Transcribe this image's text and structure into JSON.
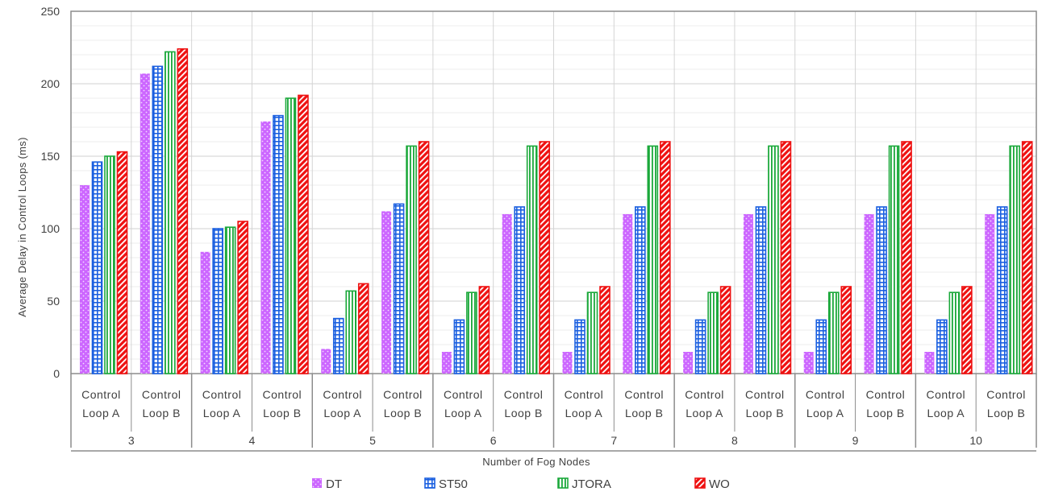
{
  "chart_data": {
    "type": "bar",
    "title": "",
    "xlabel": "Number of Fog Nodes",
    "ylabel": "Average Delay in Control Loops (ms)",
    "ylim": [
      0,
      250
    ],
    "yticks": [
      0,
      50,
      100,
      150,
      200,
      250
    ],
    "groups": [
      "3",
      "4",
      "5",
      "6",
      "7",
      "8",
      "9",
      "10"
    ],
    "subcategory_lines": [
      [
        "Control",
        "Loop A"
      ],
      [
        "Control",
        "Loop B"
      ]
    ],
    "series": [
      {
        "name": "DT",
        "color": "#cc66ff",
        "pattern": "dots",
        "values": [
          130,
          207,
          84,
          174,
          17,
          112,
          15,
          110,
          15,
          110,
          15,
          110,
          15,
          110,
          15,
          110
        ]
      },
      {
        "name": "ST50",
        "color": "#1a5fe0",
        "pattern": "grid",
        "values": [
          146,
          212,
          100,
          178,
          38,
          117,
          37,
          115,
          37,
          115,
          37,
          115,
          37,
          115,
          37,
          115
        ]
      },
      {
        "name": "JTORA",
        "color": "#1aa83a",
        "pattern": "vlines",
        "values": [
          150,
          222,
          101,
          190,
          57,
          157,
          56,
          157,
          56,
          157,
          56,
          157,
          56,
          157,
          56,
          157
        ]
      },
      {
        "name": "WO",
        "color": "#ee1111",
        "pattern": "diag",
        "values": [
          153,
          224,
          105,
          192,
          62,
          160,
          60,
          160,
          60,
          160,
          60,
          160,
          60,
          160,
          60,
          160
        ]
      }
    ],
    "legend_position": "bottom"
  }
}
